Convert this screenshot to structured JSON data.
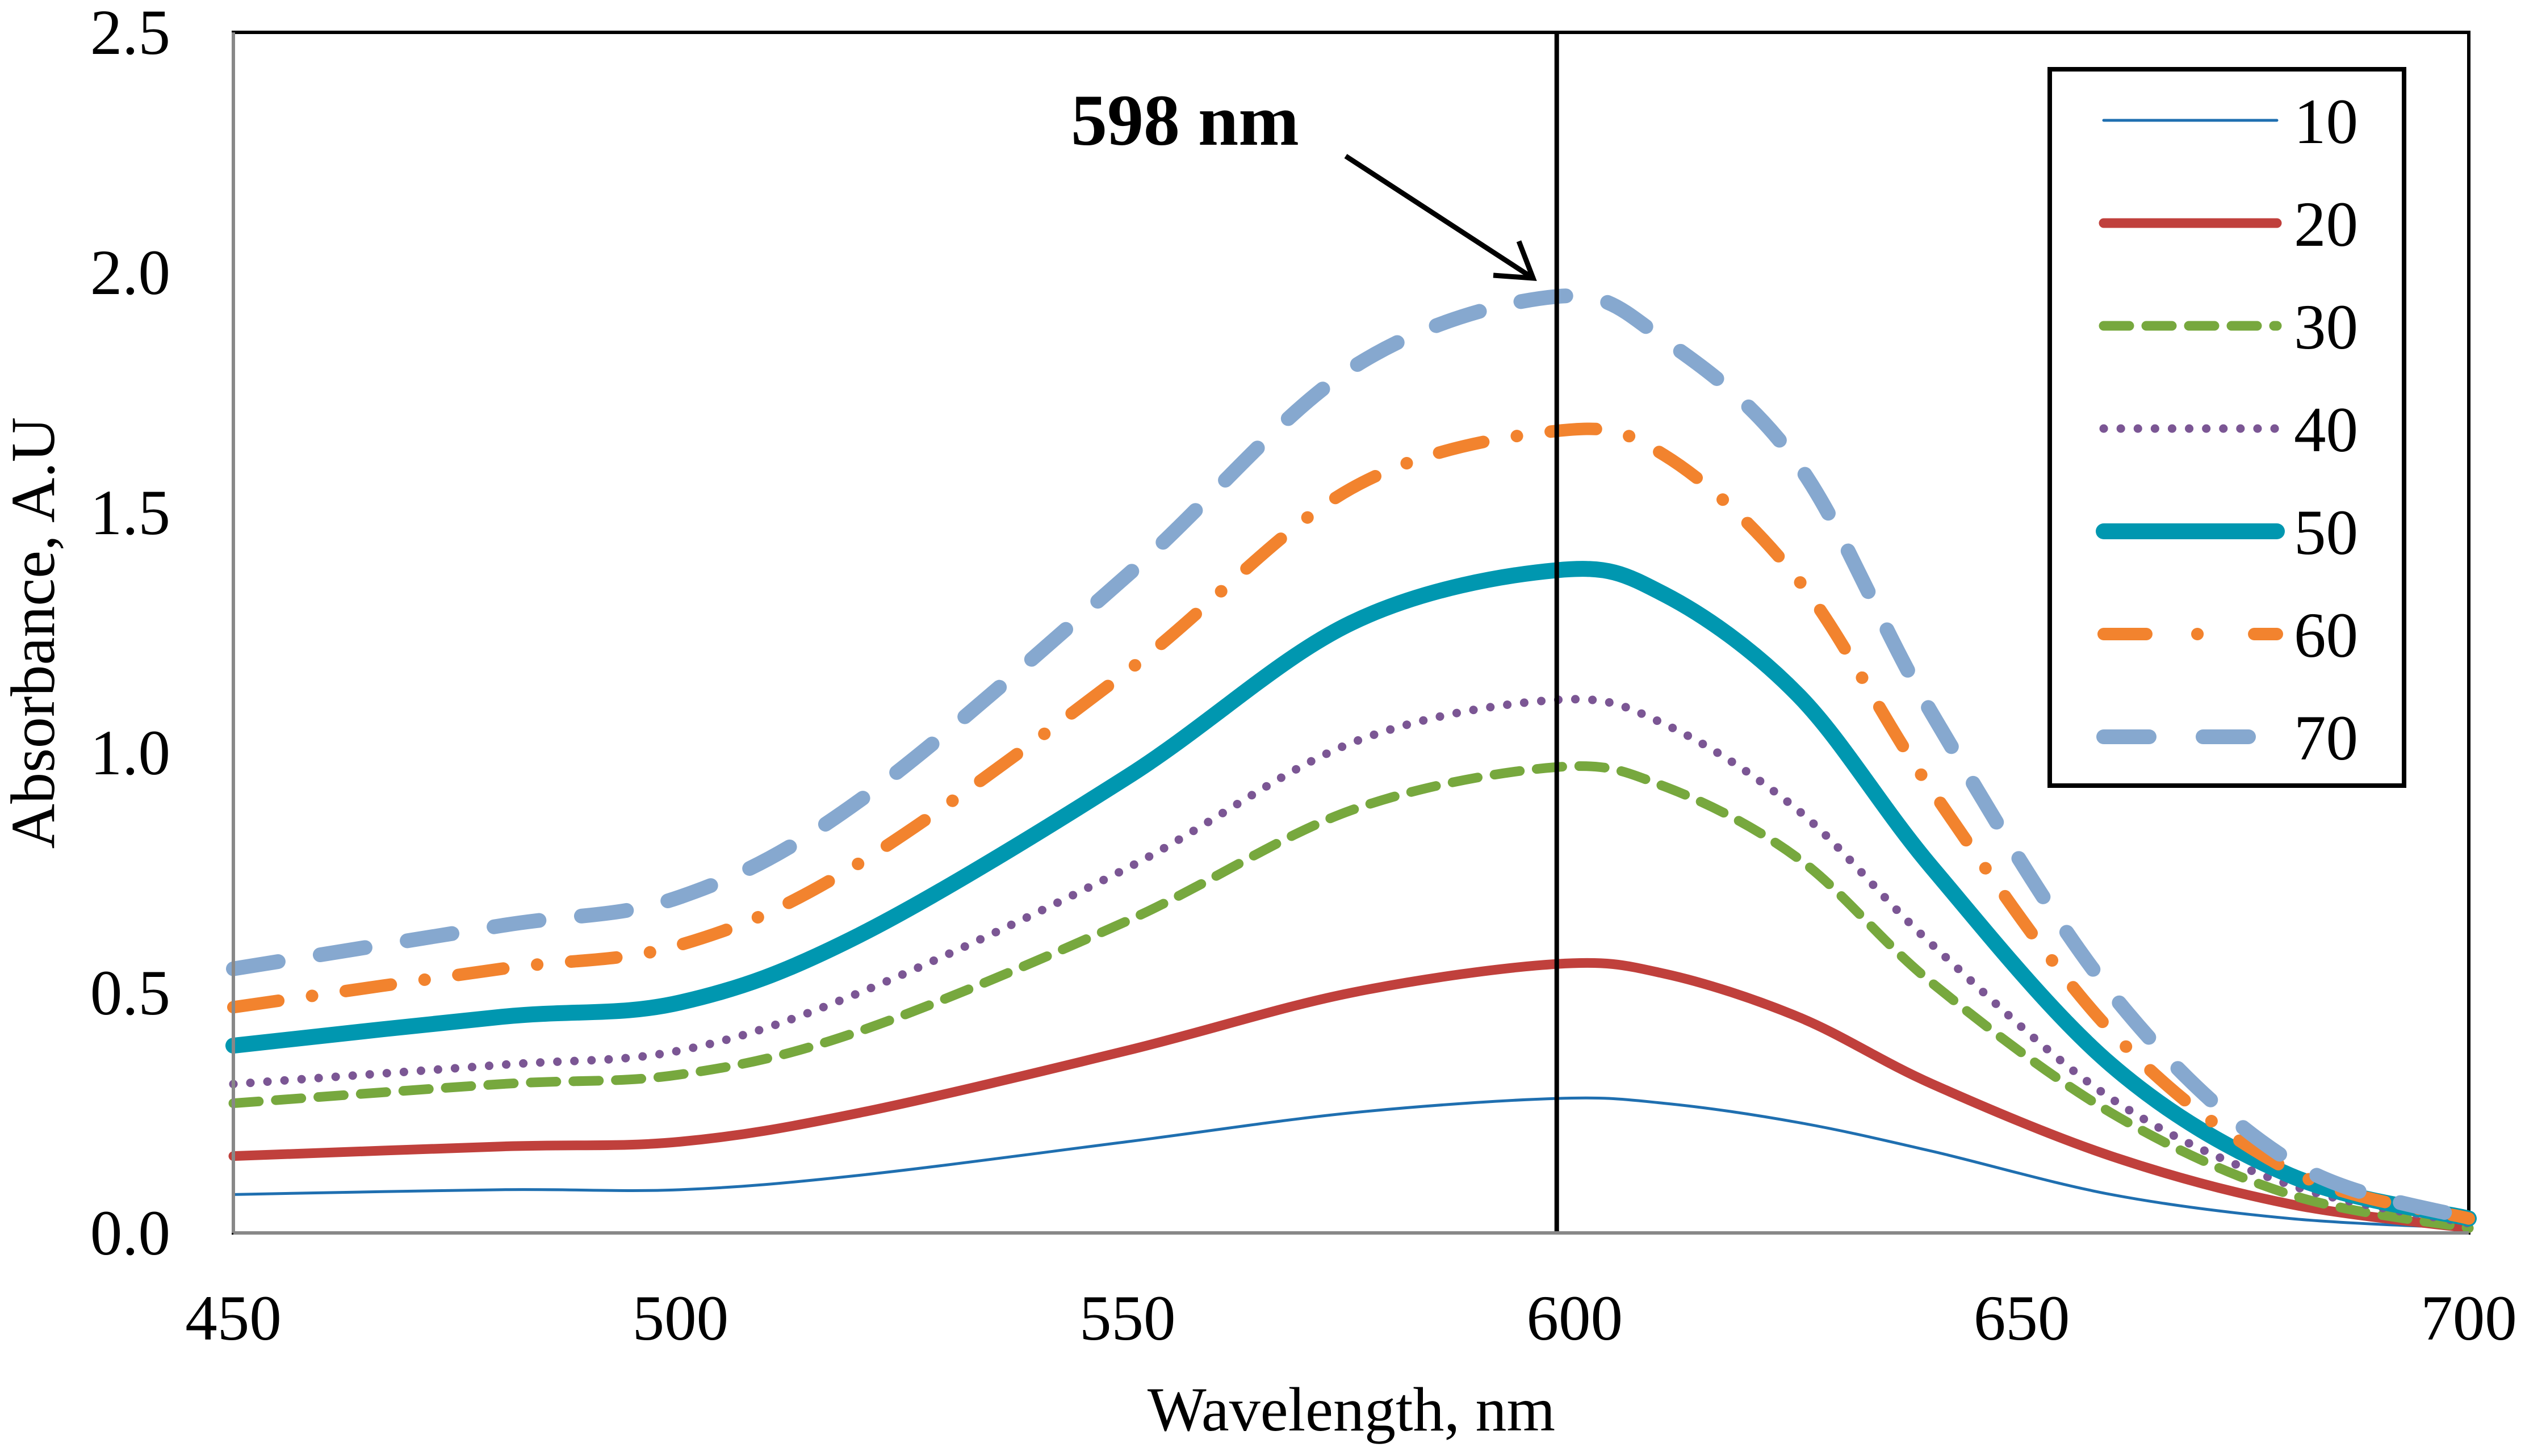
{
  "chart_data": {
    "type": "line",
    "title": "",
    "xlabel": "Wavelength, nm",
    "ylabel": "Absorbance, A.U",
    "xlim": [
      450,
      700
    ],
    "ylim": [
      0,
      2.5
    ],
    "xticks": [
      "450",
      "500",
      "550",
      "600",
      "650",
      "700"
    ],
    "yticks": [
      "0.0",
      "0.5",
      "1.0",
      "1.5",
      "2.0",
      "2.5"
    ],
    "grid": false,
    "legend_position": "top-right",
    "annotation": {
      "text": "598 nm",
      "x": 598
    },
    "x": [
      450,
      480,
      500,
      520,
      550,
      575,
      598,
      610,
      625,
      640,
      660,
      680,
      700
    ],
    "series": [
      {
        "name": "10",
        "color": "#1f6fb0",
        "style": "solid-thin",
        "values": [
          0.08,
          0.09,
          0.09,
          0.12,
          0.19,
          0.25,
          0.28,
          0.27,
          0.23,
          0.17,
          0.08,
          0.03,
          0.01
        ]
      },
      {
        "name": "20",
        "color": "#c0403c",
        "style": "solid",
        "values": [
          0.16,
          0.18,
          0.19,
          0.25,
          0.38,
          0.5,
          0.56,
          0.54,
          0.45,
          0.31,
          0.16,
          0.06,
          0.01
        ]
      },
      {
        "name": "30",
        "color": "#77a83e",
        "style": "dash",
        "values": [
          0.27,
          0.31,
          0.33,
          0.42,
          0.65,
          0.88,
          0.97,
          0.93,
          0.78,
          0.52,
          0.25,
          0.08,
          0.01
        ]
      },
      {
        "name": "40",
        "color": "#7b5694",
        "style": "dot",
        "values": [
          0.31,
          0.35,
          0.38,
          0.5,
          0.76,
          1.02,
          1.11,
          1.06,
          0.88,
          0.6,
          0.28,
          0.1,
          0.02
        ]
      },
      {
        "name": "50",
        "color": "#0097b0",
        "style": "solid-thick",
        "values": [
          0.39,
          0.45,
          0.48,
          0.62,
          0.95,
          1.27,
          1.38,
          1.33,
          1.12,
          0.76,
          0.35,
          0.12,
          0.03
        ]
      },
      {
        "name": "60",
        "color": "#f2832e",
        "style": "dash-dot",
        "values": [
          0.47,
          0.55,
          0.6,
          0.77,
          1.17,
          1.55,
          1.67,
          1.62,
          1.36,
          0.92,
          0.42,
          0.13,
          0.03
        ]
      },
      {
        "name": "70",
        "color": "#86a8cf",
        "style": "long-dash",
        "values": [
          0.55,
          0.64,
          0.7,
          0.9,
          1.37,
          1.8,
          1.95,
          1.86,
          1.6,
          1.08,
          0.5,
          0.15,
          0.03
        ]
      }
    ]
  }
}
